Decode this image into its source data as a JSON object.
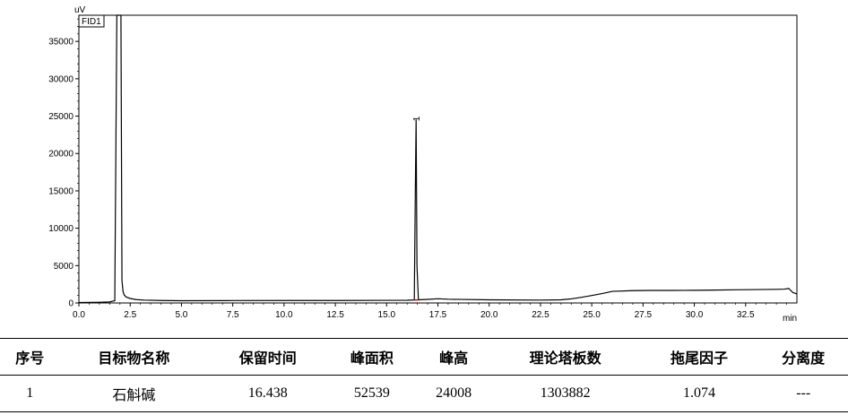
{
  "chart_data": {
    "type": "line",
    "title": "",
    "detector_label": "FID1",
    "ylabel": "uV",
    "xlabel": "min",
    "xlim": [
      0,
      35
    ],
    "ylim": [
      0,
      38500
    ],
    "x_ticks": [
      0.0,
      2.5,
      5.0,
      7.5,
      10.0,
      12.5,
      15.0,
      17.5,
      20.0,
      22.5,
      25.0,
      27.5,
      30.0,
      32.5
    ],
    "x_tick_labels": [
      "0.0",
      "2.5",
      "5.0",
      "7.5",
      "10.0",
      "12.5",
      "15.0",
      "17.5",
      "20.0",
      "22.5",
      "25.0",
      "27.5",
      "30.0",
      "32.5"
    ],
    "y_ticks": [
      0,
      5000,
      10000,
      15000,
      20000,
      25000,
      30000,
      35000
    ],
    "y_tick_labels": [
      "0",
      "5000",
      "10000",
      "15000",
      "20000",
      "25000",
      "30000",
      "35000"
    ],
    "grid": false,
    "series": [
      {
        "x": [
          0.0,
          0.5,
          1.0,
          1.5,
          1.75,
          1.85,
          1.88,
          1.92,
          1.95,
          1.98,
          2.02,
          2.05,
          2.1,
          2.15,
          2.2,
          2.3,
          2.5,
          2.8,
          3.2,
          4.0,
          5.0,
          7.5,
          10.0,
          12.5,
          15.0,
          16.0,
          16.35,
          16.4,
          16.438,
          16.48,
          16.55,
          17.0,
          17.5,
          18.0,
          20.0,
          22.5,
          23.5,
          24.0,
          24.5,
          25.0,
          25.5,
          26.0,
          27.0,
          28.0,
          29.0,
          30.0,
          31.0,
          32.0,
          33.0,
          34.0,
          34.4,
          34.6,
          34.8,
          35.0
        ],
        "y": [
          60,
          80,
          100,
          140,
          300,
          38500,
          38500,
          38500,
          38500,
          38500,
          38500,
          38500,
          3000,
          1600,
          1100,
          800,
          600,
          450,
          380,
          330,
          300,
          320,
          330,
          330,
          350,
          360,
          400,
          15000,
          24500,
          5000,
          420,
          480,
          560,
          500,
          420,
          380,
          420,
          550,
          760,
          1000,
          1250,
          1550,
          1650,
          1680,
          1680,
          1690,
          1720,
          1760,
          1790,
          1820,
          1850,
          1950,
          1400,
          1200
        ]
      }
    ],
    "peak_annotations": [
      {
        "label": "1",
        "x": 16.438,
        "y": 24500
      }
    ]
  },
  "table": {
    "headers": [
      "序号",
      "目标物名称",
      "保留时间",
      "峰面积",
      "峰高",
      "理论塔板数",
      "拖尾因子",
      "分离度"
    ],
    "rows": [
      [
        "1",
        "石斛碱",
        "16.438",
        "52539",
        "24008",
        "1303882",
        "1.074",
        "---"
      ]
    ]
  },
  "colors": {
    "trace": "#000000",
    "peak_marker": "#e00000"
  }
}
